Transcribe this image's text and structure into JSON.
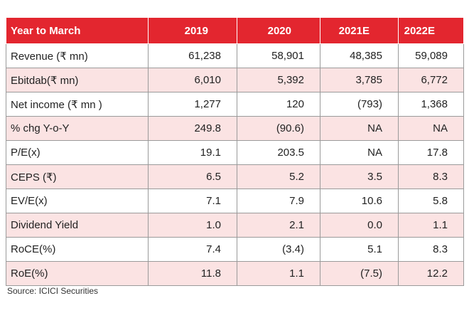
{
  "table": {
    "header": [
      "Year to March",
      "2019",
      "2020",
      "2021E",
      "2022E"
    ],
    "rows": [
      [
        "Revenue (₹ mn)",
        "61,238",
        "58,901",
        "48,385",
        "59,089"
      ],
      [
        "Ebitdab(₹ mn)",
        "6,010",
        "5,392",
        "3,785",
        "6,772"
      ],
      [
        "Net income (₹ mn )",
        "1,277",
        "120",
        "(793)",
        "1,368"
      ],
      [
        "% chg Y-o-Y",
        "249.8",
        "(90.6)",
        "NA",
        "NA"
      ],
      [
        "P/E(x)",
        "19.1",
        "203.5",
        "NA",
        "17.8"
      ],
      [
        "CEPS (₹)",
        "6.5",
        "5.2",
        "3.5",
        "8.3"
      ],
      [
        "EV/E(x)",
        "7.1",
        "7.9",
        "10.6",
        "5.8"
      ],
      [
        "Dividend Yield",
        "1.0",
        "2.1",
        "0.0",
        "1.1"
      ],
      [
        "RoCE(%)",
        "7.4",
        "(3.4)",
        "5.1",
        "8.3"
      ],
      [
        "RoE(%)",
        "11.8",
        "1.1",
        "(7.5)",
        "12.2"
      ]
    ]
  },
  "source": "Source: ICICI Securities"
}
